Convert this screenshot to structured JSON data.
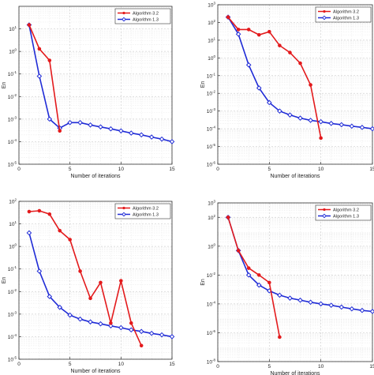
{
  "chart_data": [
    {
      "type": "line",
      "xlabel": "Number of iterations",
      "ylabel": "En",
      "xlim": [
        0,
        15
      ],
      "ylim": [
        1e-05,
        100
      ],
      "yscale": "log",
      "xticks": [
        "0",
        "5",
        "10",
        "15"
      ],
      "ytick_exponents": [
        "1",
        "0",
        "-1",
        "-2",
        "-3",
        "-4",
        "-5"
      ],
      "ytick_base": "10",
      "grid": true,
      "legend": "top-right",
      "series": [
        {
          "name": "Algorithm 3.2",
          "color": "#e31a1c",
          "marker": "circle",
          "x": [
            1,
            2,
            3,
            4
          ],
          "y": [
            15,
            1.3,
            0.4,
            0.0003
          ]
        },
        {
          "name": "Algorithm 1.3",
          "color": "#1f2bd6",
          "marker": "diamond",
          "x": [
            1,
            2,
            3,
            4,
            5,
            6,
            7,
            8,
            9,
            10,
            11,
            12,
            13,
            14,
            15
          ],
          "y": [
            15,
            0.08,
            0.001,
            0.0004,
            0.0007,
            0.0007,
            0.00055,
            0.00045,
            0.00037,
            0.0003,
            0.00024,
            0.0002,
            0.00016,
            0.00013,
            0.0001
          ]
        }
      ]
    },
    {
      "type": "line",
      "xlabel": "Number of iterations",
      "ylabel": "En",
      "xlim": [
        0,
        15
      ],
      "ylim": [
        1e-06,
        1000
      ],
      "yscale": "log",
      "xticks": [
        "0",
        "5",
        "10",
        "15"
      ],
      "ytick_exponents": [
        "3",
        "2",
        "1",
        "0",
        "-1",
        "-2",
        "-3",
        "-4",
        "-5",
        "-6"
      ],
      "ytick_base": "10",
      "grid": true,
      "legend": "top-right",
      "series": [
        {
          "name": "Algorithm 3.2",
          "color": "#e31a1c",
          "marker": "circle",
          "x": [
            1,
            2,
            3,
            4,
            5,
            6,
            7,
            8,
            9,
            10
          ],
          "y": [
            200,
            40,
            40,
            20,
            30,
            5,
            2,
            0.5,
            0.03,
            3e-05
          ]
        },
        {
          "name": "Algorithm 1.3",
          "color": "#1f2bd6",
          "marker": "diamond",
          "x": [
            1,
            2,
            3,
            4,
            5,
            6,
            7,
            8,
            9,
            10,
            11,
            12,
            13,
            14,
            15
          ],
          "y": [
            200,
            22,
            0.4,
            0.02,
            0.003,
            0.001,
            0.0006,
            0.0004,
            0.0003,
            0.00025,
            0.0002,
            0.00017,
            0.00014,
            0.00012,
            0.0001
          ]
        }
      ]
    },
    {
      "type": "line",
      "xlabel": "Number of iterations",
      "ylabel": "En",
      "xlim": [
        0,
        15
      ],
      "ylim": [
        1e-05,
        100
      ],
      "yscale": "log",
      "xticks": [
        "0",
        "5",
        "10",
        "15"
      ],
      "ytick_exponents": [
        "2",
        "1",
        "0",
        "-1",
        "-2",
        "-3",
        "-4",
        "-5"
      ],
      "ytick_base": "10",
      "grid": true,
      "legend": "top-right",
      "series": [
        {
          "name": "Algorithm 3.2",
          "color": "#e31a1c",
          "marker": "circle",
          "x": [
            1,
            2,
            3,
            4,
            5,
            6,
            7,
            8,
            9,
            10,
            11,
            12
          ],
          "y": [
            35,
            38,
            27,
            5,
            2,
            0.08,
            0.005,
            0.025,
            0.0004,
            0.03,
            0.0004,
            4e-05
          ]
        },
        {
          "name": "Algorithm 1.3",
          "color": "#1f2bd6",
          "marker": "diamond",
          "x": [
            1,
            2,
            3,
            4,
            5,
            6,
            7,
            8,
            9,
            10,
            11,
            12,
            13,
            14,
            15
          ],
          "y": [
            4,
            0.08,
            0.006,
            0.002,
            0.0009,
            0.0006,
            0.00045,
            0.00037,
            0.0003,
            0.00025,
            0.0002,
            0.00017,
            0.00014,
            0.00012,
            0.0001
          ]
        }
      ]
    },
    {
      "type": "line",
      "xlabel": "Number of iterations",
      "ylabel": "En",
      "xlim": [
        0,
        15
      ],
      "ylim": [
        1e-08,
        1000
      ],
      "yscale": "log",
      "xticks": [
        "0",
        "5",
        "10",
        "15"
      ],
      "ytick_exponents": [
        "3",
        "2",
        "0",
        "-2",
        "-4",
        "-6",
        "-8"
      ],
      "ytick_values": [
        1000,
        100,
        1,
        0.01,
        0.0001,
        1e-06,
        1e-08
      ],
      "ytick_base": "10",
      "grid": true,
      "legend": "top-right",
      "series": [
        {
          "name": "Algorithm 3.2",
          "color": "#e31a1c",
          "marker": "circle",
          "x": [
            1,
            2,
            3,
            4,
            5,
            6
          ],
          "y": [
            100,
            0.5,
            0.03,
            0.01,
            0.003,
            5e-07
          ]
        },
        {
          "name": "Algorithm 1.3",
          "color": "#1f2bd6",
          "marker": "diamond",
          "x": [
            1,
            2,
            3,
            4,
            5,
            6,
            7,
            8,
            9,
            10,
            11,
            12,
            13,
            14,
            15
          ],
          "y": [
            100,
            0.5,
            0.01,
            0.002,
            0.0008,
            0.0004,
            0.00025,
            0.00018,
            0.00013,
            0.0001,
            8e-05,
            6e-05,
            4.5e-05,
            3.5e-05,
            3e-05
          ]
        }
      ]
    }
  ]
}
